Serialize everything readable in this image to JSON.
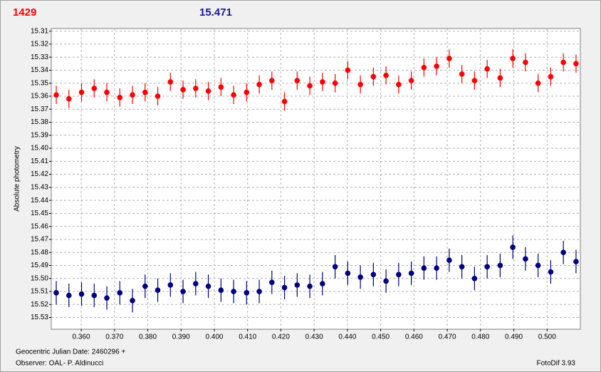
{
  "chart_data": {
    "type": "scatter",
    "header_left": "1429",
    "header_right": "15.471",
    "y_label": "Absolute photometry",
    "x_label": "Geocentric Julian Date: 2460296 +",
    "footer_left": "Observer: OAL- P. Aldinucci",
    "footer_right": "FotoDif 3.93",
    "xlim": [
      0.351,
      0.51
    ],
    "ylim": [
      15.308,
      15.539
    ],
    "y_inverted": true,
    "grid": true,
    "xticks": [
      {
        "value": 0.36,
        "label": "0.360"
      },
      {
        "value": 0.37,
        "label": "0.370"
      },
      {
        "value": 0.38,
        "label": "0.380"
      },
      {
        "value": 0.39,
        "label": "0.390"
      },
      {
        "value": 0.4,
        "label": "0.400"
      },
      {
        "value": 0.41,
        "label": "0.410"
      },
      {
        "value": 0.42,
        "label": "0.420"
      },
      {
        "value": 0.43,
        "label": "0.430"
      },
      {
        "value": 0.44,
        "label": "0.440"
      },
      {
        "value": 0.45,
        "label": "0.450"
      },
      {
        "value": 0.46,
        "label": "0.460"
      },
      {
        "value": 0.47,
        "label": "0.470"
      },
      {
        "value": 0.48,
        "label": "0.480"
      },
      {
        "value": 0.49,
        "label": "0.490"
      },
      {
        "value": 0.5,
        "label": "0.500"
      }
    ],
    "yticks": [
      15.31,
      15.32,
      15.33,
      15.34,
      15.35,
      15.36,
      15.37,
      15.38,
      15.39,
      {
        "value": 15.4,
        "label": "15.40"
      },
      15.41,
      15.42,
      15.43,
      15.44,
      15.45,
      15.46,
      15.47,
      15.48,
      15.49,
      {
        "value": 15.5,
        "label": "15.50"
      },
      15.51,
      15.52,
      15.53
    ],
    "x": [
      0.3525,
      0.3563,
      0.3601,
      0.3639,
      0.3677,
      0.3716,
      0.3754,
      0.3792,
      0.383,
      0.3868,
      0.3906,
      0.3944,
      0.3982,
      0.402,
      0.4058,
      0.4097,
      0.4135,
      0.4173,
      0.4211,
      0.4249,
      0.4287,
      0.4325,
      0.4363,
      0.4401,
      0.4439,
      0.4478,
      0.4516,
      0.4554,
      0.4592,
      0.463,
      0.4668,
      0.4706,
      0.4744,
      0.4782,
      0.482,
      0.4859,
      0.4897,
      0.4935,
      0.4973,
      0.5011,
      0.5049,
      0.5087
    ],
    "series": [
      {
        "color": "#ff0000",
        "error": 0.007,
        "values": [
          15.359,
          15.362,
          15.357,
          15.354,
          15.357,
          15.361,
          15.359,
          15.357,
          15.36,
          15.349,
          15.355,
          15.354,
          15.356,
          15.353,
          15.359,
          15.357,
          15.351,
          15.348,
          15.364,
          15.348,
          15.352,
          15.349,
          15.35,
          15.34,
          15.351,
          15.345,
          15.344,
          15.351,
          15.348,
          15.338,
          15.337,
          15.331,
          15.343,
          15.348,
          15.339,
          15.346,
          15.331,
          15.334,
          15.35,
          15.345,
          15.334,
          15.335
        ]
      },
      {
        "color": "#000080",
        "error": 0.009,
        "values": [
          15.511,
          15.513,
          15.512,
          15.513,
          15.515,
          15.511,
          15.517,
          15.506,
          15.509,
          15.505,
          15.51,
          15.504,
          15.506,
          15.509,
          15.51,
          15.511,
          15.51,
          15.503,
          15.507,
          15.505,
          15.506,
          15.504,
          15.491,
          15.496,
          15.499,
          15.497,
          15.502,
          15.497,
          15.496,
          15.492,
          15.492,
          15.486,
          15.491,
          15.5,
          15.491,
          15.49,
          15.476,
          15.485,
          15.49,
          15.495,
          15.48,
          15.487
        ]
      }
    ]
  }
}
